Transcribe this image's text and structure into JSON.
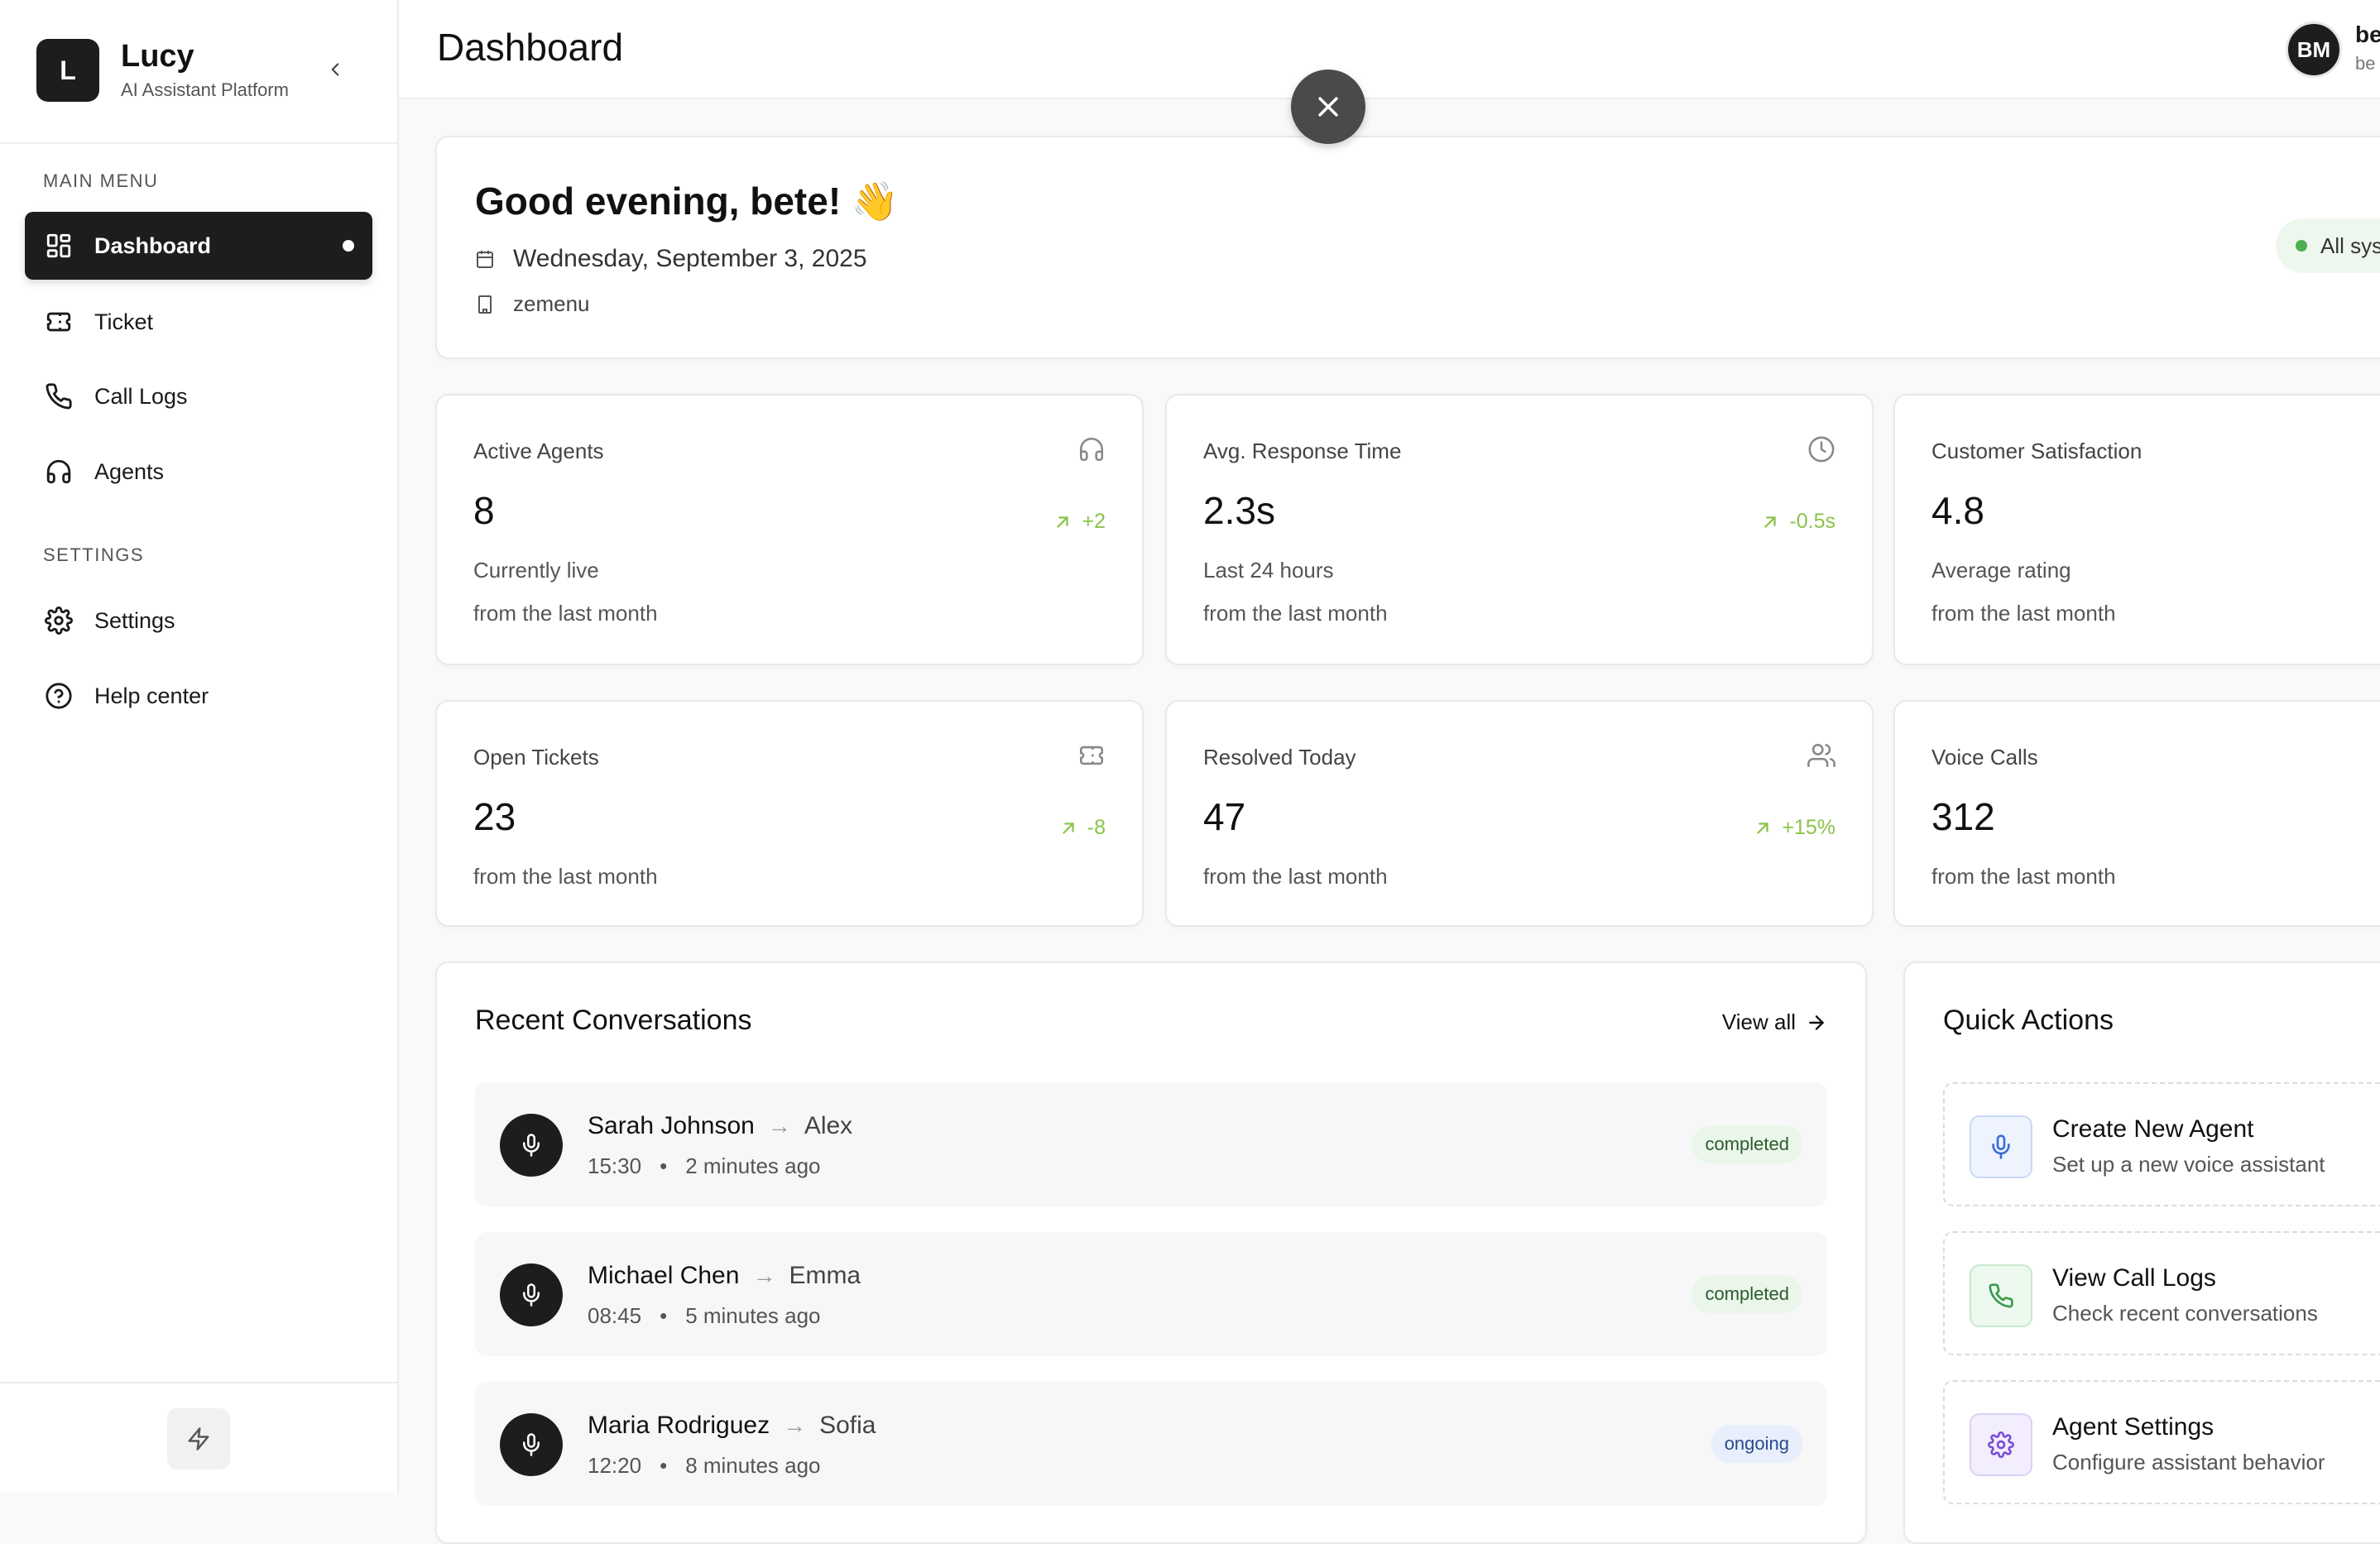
{
  "brand": {
    "logo_letter": "L",
    "name": "Lucy",
    "subtitle": "AI Assistant Platform"
  },
  "sidebar": {
    "main_menu_label": "MAIN MENU",
    "settings_label": "SETTINGS",
    "items": [
      {
        "label": "Dashboard",
        "icon": "dashboard-icon",
        "active": true
      },
      {
        "label": "Ticket",
        "icon": "ticket-icon"
      },
      {
        "label": "Call Logs",
        "icon": "phone-icon"
      },
      {
        "label": "Agents",
        "icon": "headset-icon"
      }
    ],
    "settings_items": [
      {
        "label": "Settings",
        "icon": "gear-icon"
      },
      {
        "label": "Help center",
        "icon": "help-circle-icon"
      }
    ],
    "bottom_icon": "bolt-icon"
  },
  "header": {
    "title": "Dashboard",
    "user": {
      "initials": "BM",
      "name": "be",
      "sub": "be"
    }
  },
  "greeting": {
    "title": "Good evening, bete! 👋",
    "date": "Wednesday, September 3, 2025",
    "org": "zemenu",
    "status": "All sys"
  },
  "stats": [
    {
      "label": "Active Agents",
      "value": "8",
      "sub1": "Currently live",
      "sub2": "from the last month",
      "trend": "+2",
      "icon": "headset-icon"
    },
    {
      "label": "Avg. Response Time",
      "value": "2.3s",
      "sub1": "Last 24 hours",
      "sub2": "from the last month",
      "trend": "-0.5s",
      "icon": "clock-icon"
    },
    {
      "label": "Customer Satisfaction",
      "value": "4.8",
      "sub1": "Average rating",
      "sub2": "from the last month",
      "trend": "",
      "icon": ""
    },
    {
      "label": "Open Tickets",
      "value": "23",
      "sub1": "from the last month",
      "trend": "-8",
      "icon": "ticket-icon"
    },
    {
      "label": "Resolved Today",
      "value": "47",
      "sub1": "from the last month",
      "trend": "+15%",
      "icon": "users-icon"
    },
    {
      "label": "Voice Calls",
      "value": "312",
      "sub1": "from the last month",
      "trend": "",
      "icon": ""
    }
  ],
  "recent": {
    "title": "Recent Conversations",
    "view_all": "View all",
    "items": [
      {
        "caller": "Sarah Johnson",
        "arrow": "→",
        "agent": "Alex",
        "time": "15:30",
        "sep": "•",
        "ago": "2 minutes ago",
        "status": "completed"
      },
      {
        "caller": "Michael Chen",
        "arrow": "→",
        "agent": "Emma",
        "time": "08:45",
        "sep": "•",
        "ago": "5 minutes ago",
        "status": "completed"
      },
      {
        "caller": "Maria Rodriguez",
        "arrow": "→",
        "agent": "Sofia",
        "time": "12:20",
        "sep": "•",
        "ago": "8 minutes ago",
        "status": "ongoing"
      }
    ]
  },
  "quick_actions": {
    "title": "Quick Actions",
    "items": [
      {
        "title": "Create New Agent",
        "sub": "Set up a new voice assistant",
        "icon": "microphone-icon",
        "color": "#3b6fd8",
        "bg": "#eef3fd"
      },
      {
        "title": "View Call Logs",
        "sub": "Check recent conversations",
        "icon": "phone-icon",
        "color": "#3a9a4a",
        "bg": "#edf8ef"
      },
      {
        "title": "Agent Settings",
        "sub": "Configure assistant behavior",
        "icon": "gear-icon",
        "color": "#7b4fd8",
        "bg": "#f3eefd"
      }
    ]
  },
  "colors": {
    "accent_dark": "#1d1d1f",
    "trend_green": "#8bc34a",
    "status_green": "#4caf50"
  }
}
